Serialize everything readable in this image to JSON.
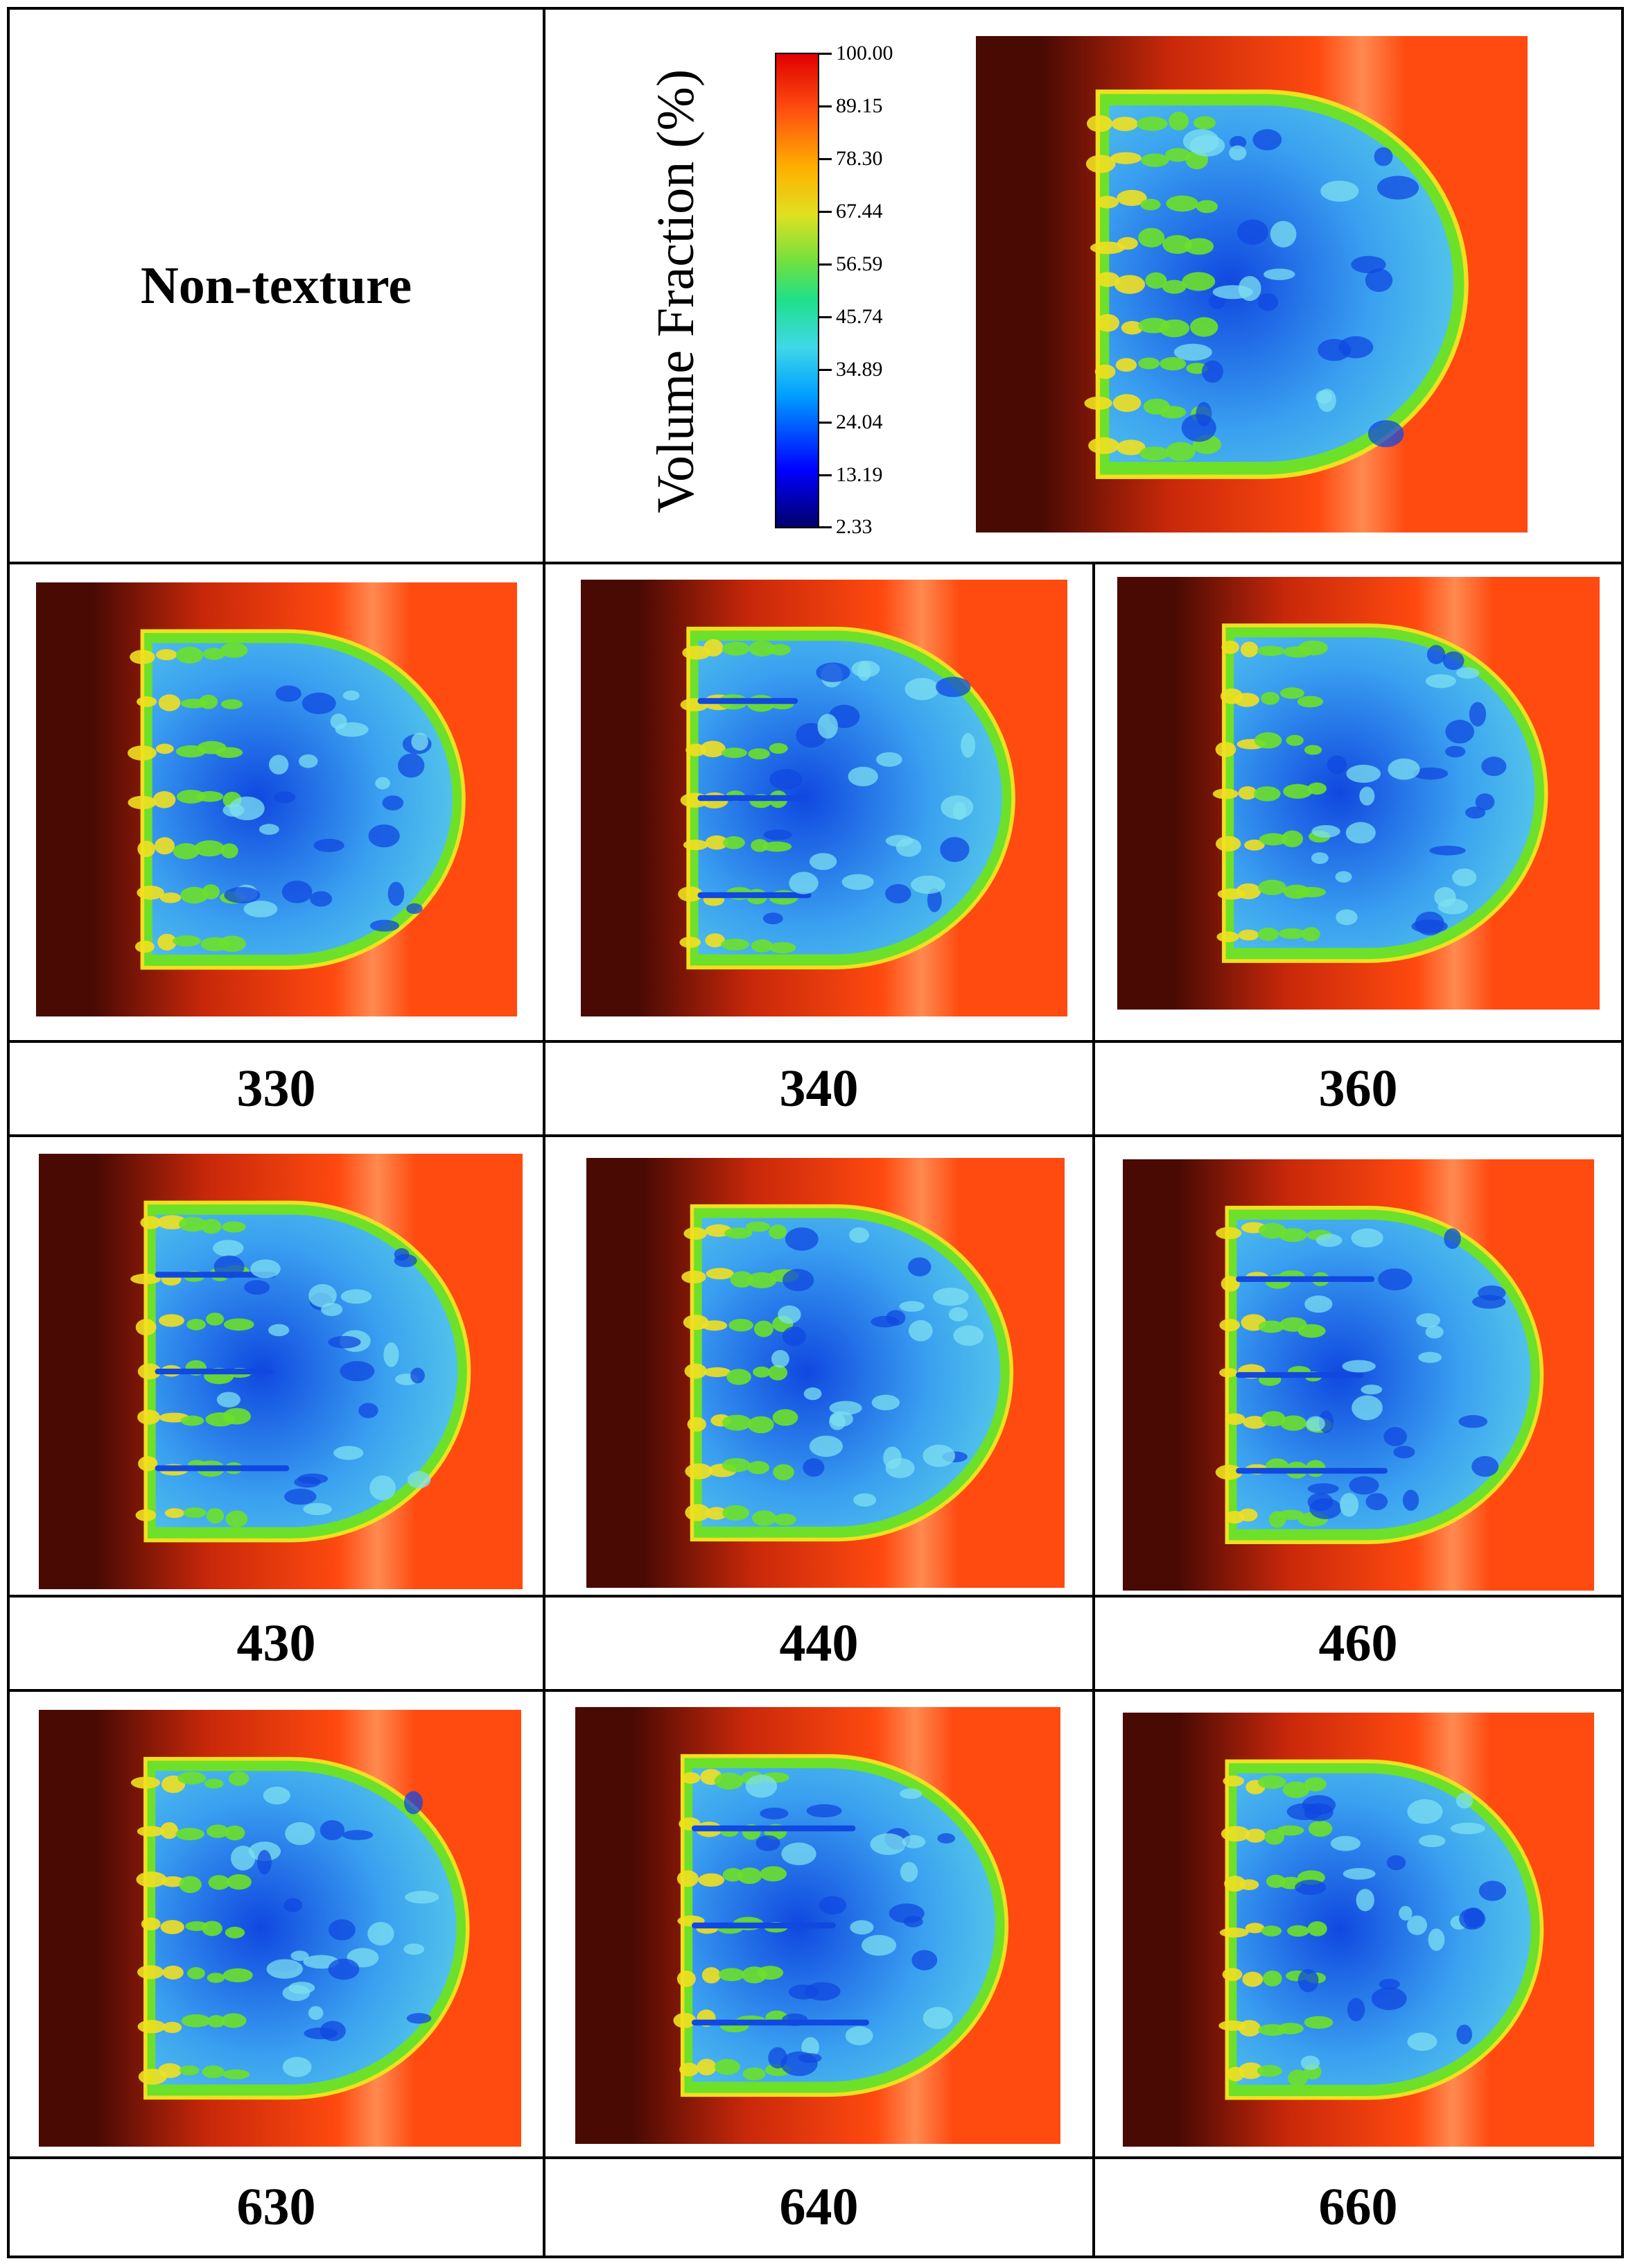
{
  "header": {
    "row_title": "Non-texture",
    "colorbar": {
      "title": "Volume Fraction (%)",
      "ticks": [
        "100.00",
        "89.15",
        "78.30",
        "67.44",
        "56.59",
        "45.74",
        "34.89",
        "24.04",
        "13.19",
        "2.33"
      ],
      "colors": {
        "high": "#e00000",
        "upper_mid": "#ffb000",
        "mid": "#1ee08a",
        "lower_mid": "#00a0ff",
        "low": "#00006b"
      }
    }
  },
  "panels": [
    {
      "label": "330"
    },
    {
      "label": "340"
    },
    {
      "label": "360"
    },
    {
      "label": "430"
    },
    {
      "label": "440"
    },
    {
      "label": "460"
    },
    {
      "label": "630"
    },
    {
      "label": "640"
    },
    {
      "label": "660"
    }
  ],
  "colors": {
    "background_dark": "#4a0a04",
    "background_red": "#ff4a10",
    "droplet_blue": "#3aa0f0",
    "droplet_edge_green": "#6de02a",
    "droplet_rim_yellow": "#f0e020",
    "deep_blue": "#1048e0"
  }
}
